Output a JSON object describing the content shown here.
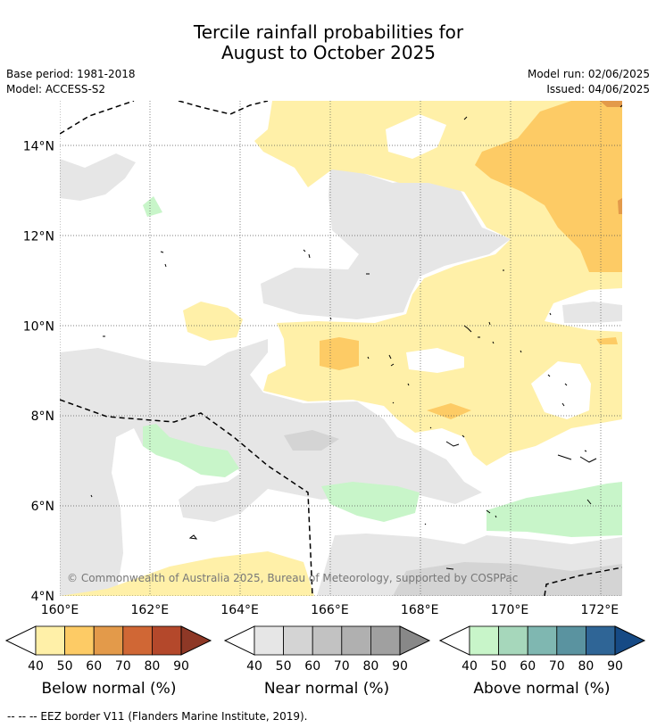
{
  "title_line1": "Tercile rainfall probabilities for",
  "title_line2": "August to October 2025",
  "base_period": "Base period: 1981-2018",
  "model": "Model: ACCESS-S2",
  "model_run": "Model run: 02/06/2025",
  "issued": "Issued: 04/06/2025",
  "copyright": "© Commonwealth of Australia 2025, Bureau of Meteorology, supported by COSPPac",
  "footnote": "-- -- -- EEZ border V11 (Flanders Marine Institute, 2019).",
  "chart_data": {
    "type": "heatmap",
    "xlim": [
      160,
      172.5
    ],
    "ylim": [
      4,
      15
    ],
    "x_ticks": [
      "160°E",
      "162°E",
      "164°E",
      "166°E",
      "168°E",
      "170°E",
      "172°E"
    ],
    "y_ticks": [
      "4°N",
      "6°N",
      "8°N",
      "10°N",
      "12°N",
      "14°N"
    ],
    "grid": true,
    "colorbars": [
      {
        "name": "Below normal (%)",
        "ticks": [
          "40",
          "50",
          "60",
          "70",
          "80",
          "90"
        ],
        "colors": [
          "#fff0a8",
          "#fdcb65",
          "#e39a4a",
          "#d06735",
          "#b4482b",
          "#8e3826"
        ]
      },
      {
        "name": "Near normal (%)",
        "ticks": [
          "40",
          "50",
          "60",
          "70",
          "80",
          "90"
        ],
        "colors": [
          "#e6e6e6",
          "#d4d4d4",
          "#c2c2c2",
          "#b0b0b0",
          "#a0a0a0",
          "#888888"
        ]
      },
      {
        "name": "Above normal (%)",
        "ticks": [
          "40",
          "50",
          "60",
          "70",
          "80",
          "90"
        ],
        "colors": [
          "#c8f5c9",
          "#a6d7bb",
          "#7fb7b1",
          "#5a93a0",
          "#2f6596",
          "#164a85"
        ]
      }
    ]
  }
}
